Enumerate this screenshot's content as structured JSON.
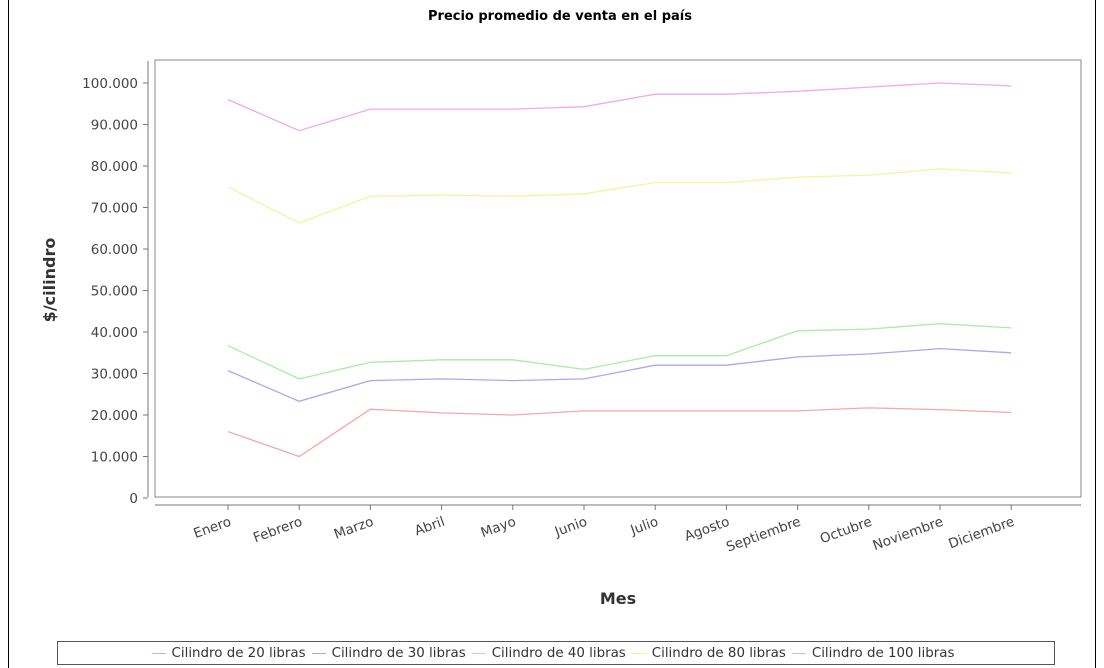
{
  "chart_data": {
    "type": "line",
    "title": "Precio promedio de venta en el país",
    "xlabel": "Mes",
    "ylabel": "$/cilindro",
    "categories": [
      "Enero",
      "Febrero",
      "Marzo",
      "Abril",
      "Mayo",
      "Junio",
      "Julio",
      "Agosto",
      "Septiembre",
      "Octubre",
      "Noviembre",
      "Diciembre"
    ],
    "ylim": [
      0,
      100000
    ],
    "yticks": [
      0,
      10000,
      20000,
      30000,
      40000,
      50000,
      60000,
      70000,
      80000,
      90000,
      100000
    ],
    "ytick_labels": [
      "0",
      "10.000",
      "20.000",
      "30.000",
      "40.000",
      "50.000",
      "60.000",
      "70.000",
      "80.000",
      "90.000",
      "100.000"
    ],
    "grid": false,
    "legend_position": "bottom",
    "series": [
      {
        "name": "Cilindro de 20 libras",
        "color": "#f4a8a8",
        "values": [
          16000,
          10000,
          21400,
          20500,
          20000,
          21000,
          21000,
          21000,
          21000,
          21700,
          21300,
          20600
        ]
      },
      {
        "name": "Cilindro de 30 libras",
        "color": "#a8a8f0",
        "values": [
          30700,
          23300,
          28300,
          28700,
          28300,
          28700,
          32000,
          32000,
          34000,
          34700,
          36000,
          35000
        ]
      },
      {
        "name": "Cilindro de 40 libras",
        "color": "#a8eca8",
        "values": [
          36700,
          28700,
          32700,
          33300,
          33300,
          31000,
          34300,
          34300,
          40300,
          40700,
          42000,
          41000
        ]
      },
      {
        "name": "Cilindro de 80 libras",
        "color": "#f4f4a0",
        "values": [
          75000,
          66300,
          72700,
          73000,
          72700,
          73300,
          76000,
          76000,
          77300,
          77800,
          79300,
          78300
        ]
      },
      {
        "name": "Cilindro de 100 libras",
        "color": "#f0a8f0",
        "values": [
          96000,
          88500,
          93700,
          93700,
          93700,
          94300,
          97300,
          97300,
          98000,
          99000,
          100000,
          99300
        ]
      }
    ]
  }
}
